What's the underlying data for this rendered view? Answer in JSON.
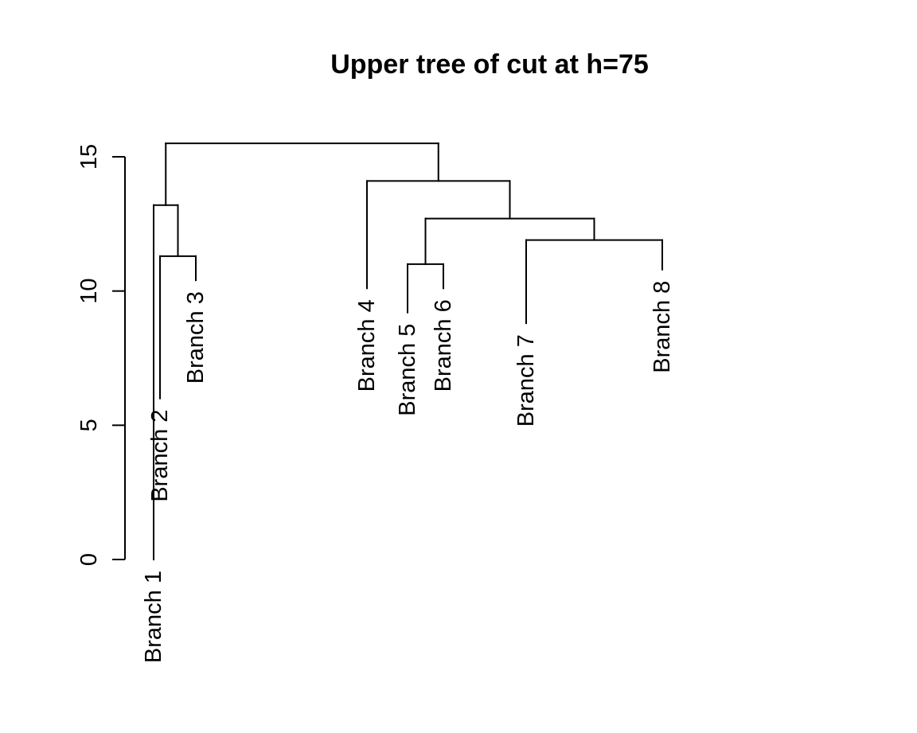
{
  "chart_data": {
    "type": "dendrogram",
    "title": "Upper tree of cut at h=75",
    "ylim": [
      0,
      15.5
    ],
    "yticks": [
      0,
      5,
      10,
      15
    ],
    "ytick_labels": [
      "0",
      "5",
      "10",
      "15"
    ],
    "leaves": [
      {
        "label": "Branch 1",
        "height": 0
      },
      {
        "label": "Branch 2",
        "height": 6.0
      },
      {
        "label": "Branch 3",
        "height": 10.4
      },
      {
        "label": "Branch 4",
        "height": 10.1
      },
      {
        "label": "Branch 5",
        "height": 9.2
      },
      {
        "label": "Branch 6",
        "height": 10.1
      },
      {
        "label": "Branch 7",
        "height": 8.8
      },
      {
        "label": "Branch 8",
        "height": 10.8
      }
    ],
    "merges": [
      {
        "left": "leaf:1",
        "right": "leaf:2",
        "height": 11.3
      },
      {
        "left": "leaf:0",
        "right": "node:0",
        "height": 13.2
      },
      {
        "left": "leaf:4",
        "right": "leaf:5",
        "height": 11.0
      },
      {
        "left": "leaf:6",
        "right": "leaf:7",
        "height": 11.9
      },
      {
        "left": "node:2",
        "right": "node:3",
        "height": 12.7
      },
      {
        "left": "leaf:3",
        "right": "node:4",
        "height": 14.1
      },
      {
        "left": "node:1",
        "right": "node:5",
        "height": 15.5
      }
    ]
  }
}
